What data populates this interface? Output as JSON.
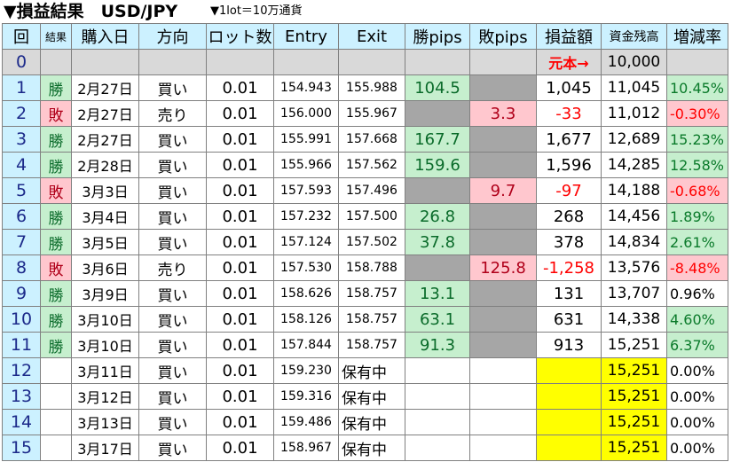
{
  "title": {
    "main": "▼損益結果　USD/JPY",
    "sub": "▼1lot＝10万通貨"
  },
  "headers": [
    "回",
    "結果",
    "購入日",
    "方向",
    "ロット数",
    "Entry",
    "Exit",
    "勝pips",
    "敗pips",
    "損益額",
    "資金残高",
    "増減率"
  ],
  "initial_row": {
    "no": "0",
    "label": "元本→",
    "balance": "10,000"
  },
  "rows": [
    {
      "no": "1",
      "result": "勝",
      "date": "2月27日",
      "dir": "買い",
      "lot": "0.01",
      "entry": "154.943",
      "exit": "155.988",
      "win_pips": "104.5",
      "loss_pips": "",
      "pl": "1,045",
      "balance": "11,045",
      "rate": "10.45%"
    },
    {
      "no": "2",
      "result": "敗",
      "date": "2月27日",
      "dir": "売り",
      "lot": "0.01",
      "entry": "156.000",
      "exit": "155.967",
      "win_pips": "",
      "loss_pips": "3.3",
      "pl": "-33",
      "balance": "11,012",
      "rate": "-0.30%"
    },
    {
      "no": "3",
      "result": "勝",
      "date": "2月27日",
      "dir": "買い",
      "lot": "0.01",
      "entry": "155.991",
      "exit": "157.668",
      "win_pips": "167.7",
      "loss_pips": "",
      "pl": "1,677",
      "balance": "12,689",
      "rate": "15.23%"
    },
    {
      "no": "4",
      "result": "勝",
      "date": "2月28日",
      "dir": "買い",
      "lot": "0.01",
      "entry": "155.966",
      "exit": "157.562",
      "win_pips": "159.6",
      "loss_pips": "",
      "pl": "1,596",
      "balance": "14,285",
      "rate": "12.58%"
    },
    {
      "no": "5",
      "result": "敗",
      "date": "3月3日",
      "dir": "買い",
      "lot": "0.01",
      "entry": "157.593",
      "exit": "157.496",
      "win_pips": "",
      "loss_pips": "9.7",
      "pl": "-97",
      "balance": "14,188",
      "rate": "-0.68%"
    },
    {
      "no": "6",
      "result": "勝",
      "date": "3月4日",
      "dir": "買い",
      "lot": "0.01",
      "entry": "157.232",
      "exit": "157.500",
      "win_pips": "26.8",
      "loss_pips": "",
      "pl": "268",
      "balance": "14,456",
      "rate": "1.89%"
    },
    {
      "no": "7",
      "result": "勝",
      "date": "3月5日",
      "dir": "買い",
      "lot": "0.01",
      "entry": "157.124",
      "exit": "157.502",
      "win_pips": "37.8",
      "loss_pips": "",
      "pl": "378",
      "balance": "14,834",
      "rate": "2.61%"
    },
    {
      "no": "8",
      "result": "敗",
      "date": "3月6日",
      "dir": "売り",
      "lot": "0.01",
      "entry": "157.530",
      "exit": "158.788",
      "win_pips": "",
      "loss_pips": "125.8",
      "pl": "-1,258",
      "balance": "13,576",
      "rate": "-8.48%"
    },
    {
      "no": "9",
      "result": "勝",
      "date": "3月9日",
      "dir": "買い",
      "lot": "0.01",
      "entry": "158.626",
      "exit": "158.757",
      "win_pips": "13.1",
      "loss_pips": "",
      "pl": "131",
      "balance": "13,707",
      "rate": "0.96%"
    },
    {
      "no": "10",
      "result": "勝",
      "date": "3月10日",
      "dir": "買い",
      "lot": "0.01",
      "entry": "158.126",
      "exit": "158.757",
      "win_pips": "63.1",
      "loss_pips": "",
      "pl": "631",
      "balance": "14,338",
      "rate": "4.60%"
    },
    {
      "no": "11",
      "result": "勝",
      "date": "3月10日",
      "dir": "買い",
      "lot": "0.01",
      "entry": "157.844",
      "exit": "158.757",
      "win_pips": "91.3",
      "loss_pips": "",
      "pl": "913",
      "balance": "15,251",
      "rate": "6.37%"
    },
    {
      "no": "12",
      "result": "",
      "date": "3月11日",
      "dir": "買い",
      "lot": "0.01",
      "entry": "159.230",
      "exit": "保有中",
      "win_pips": "",
      "loss_pips": "",
      "pl": "",
      "balance": "15,251",
      "rate": "0.00%"
    },
    {
      "no": "13",
      "result": "",
      "date": "3月12日",
      "dir": "買い",
      "lot": "0.01",
      "entry": "159.316",
      "exit": "保有中",
      "win_pips": "",
      "loss_pips": "",
      "pl": "",
      "balance": "15,251",
      "rate": "0.00%"
    },
    {
      "no": "14",
      "result": "",
      "date": "3月13日",
      "dir": "買い",
      "lot": "0.01",
      "entry": "159.486",
      "exit": "保有中",
      "win_pips": "",
      "loss_pips": "",
      "pl": "",
      "balance": "15,251",
      "rate": "0.00%"
    },
    {
      "no": "15",
      "result": "",
      "date": "3月17日",
      "dir": "買い",
      "lot": "0.01",
      "entry": "158.967",
      "exit": "保有中",
      "win_pips": "",
      "loss_pips": "",
      "pl": "",
      "balance": "15,251",
      "rate": "0.00%"
    }
  ],
  "colors": {
    "header_bg": "#ccf1ff",
    "win_bg": "#c6efce",
    "loss_bg": "#ffc7ce",
    "empty_pips_bg": "#a6a6a6",
    "holding_bg": "#ffff00",
    "negative_text": "#ff0000"
  }
}
